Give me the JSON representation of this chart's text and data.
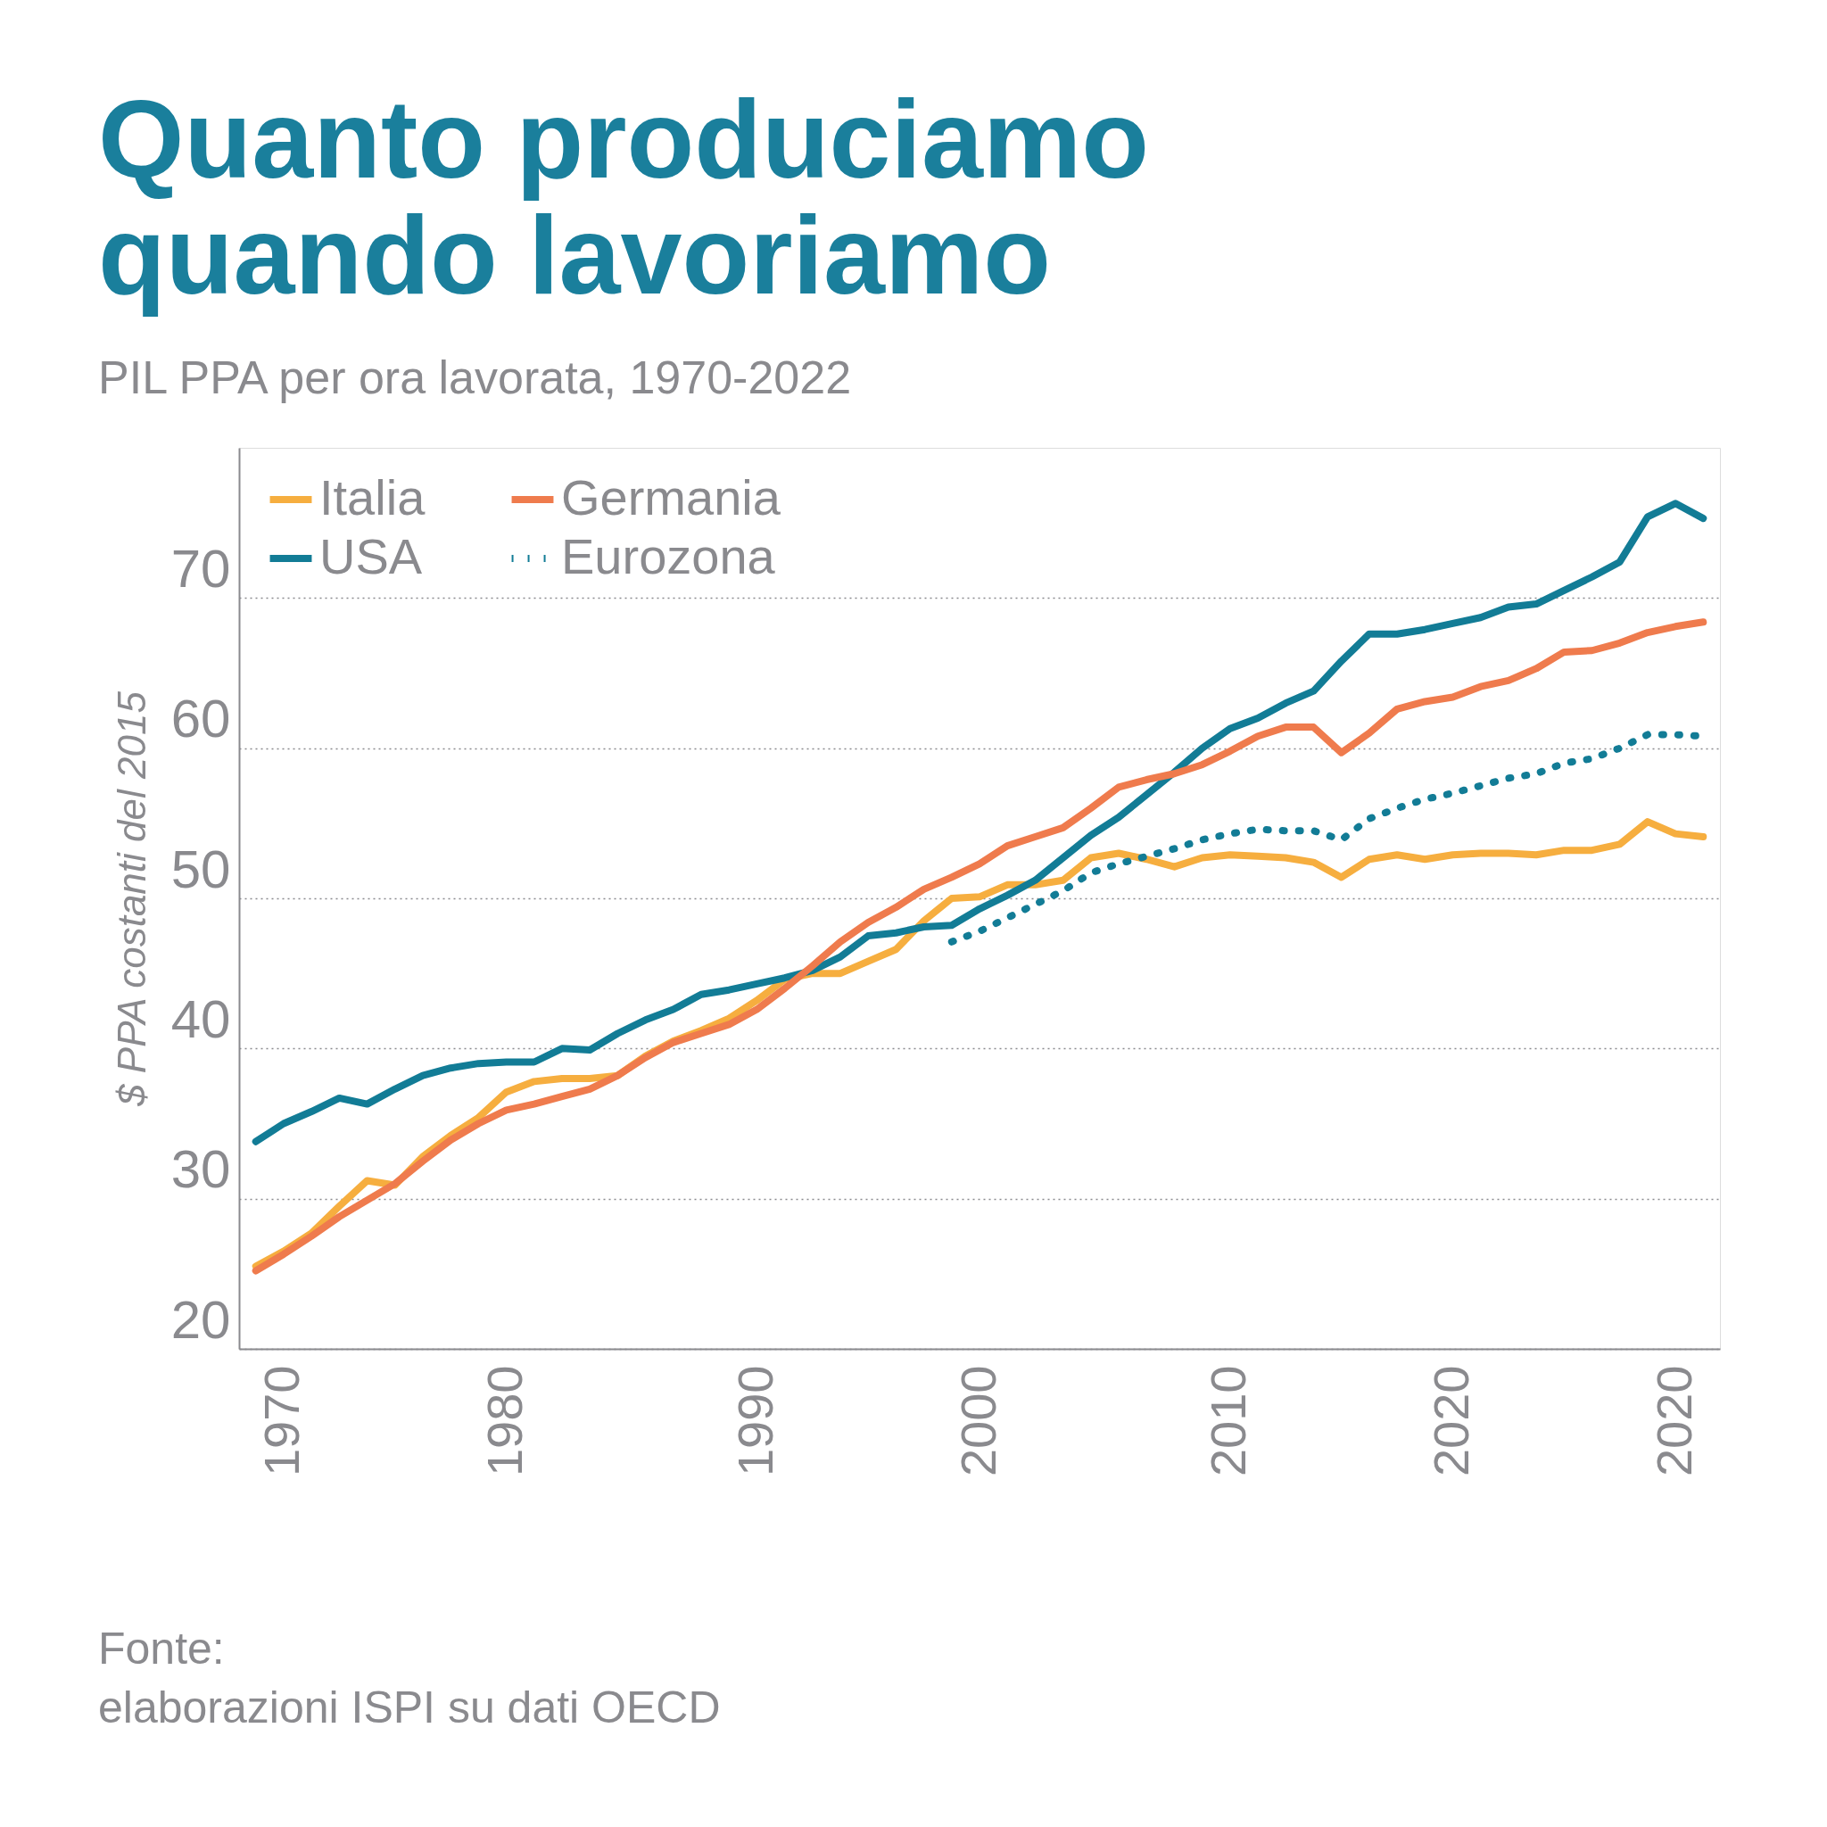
{
  "chart_data": {
    "type": "line",
    "title": "Quanto produciamo quando lavoriamo",
    "subtitle": "PIL PPA per ora lavorata, 1970-2022",
    "ylabel": "$ PPA costanti del 2015",
    "categories": [
      null,
      "1970",
      null,
      null,
      null,
      null,
      null,
      null,
      null,
      "1980",
      null,
      null,
      null,
      null,
      null,
      null,
      null,
      null,
      "1990",
      null,
      null,
      null,
      null,
      null,
      null,
      null,
      "2000",
      null,
      null,
      null,
      null,
      null,
      null,
      null,
      null,
      "2010",
      null,
      null,
      null,
      null,
      null,
      null,
      null,
      "2020",
      null,
      null,
      null,
      null,
      null,
      null,
      null,
      "2020",
      null
    ],
    "series": [
      {
        "name": "Italia",
        "color": "#f6ae3f",
        "line_style": "solid",
        "values": [
          25.5,
          26.5,
          27.7,
          29.5,
          31.2,
          30.9,
          32.8,
          34.2,
          35.4,
          37.1,
          37.8,
          38,
          38,
          38.2,
          39.5,
          40.5,
          41.2,
          42,
          43.2,
          44.6,
          45,
          45,
          45.8,
          46.6,
          48.5,
          50,
          50.1,
          50.9,
          50.9,
          51.2,
          52.7,
          53,
          52.6,
          52.1,
          52.7,
          52.9,
          52.8,
          52.7,
          52.4,
          51.4,
          52.6,
          52.9,
          52.6,
          52.9,
          53,
          53,
          52.9,
          53.2,
          53.2,
          53.6,
          55.1,
          54.3,
          54.1
        ]
      },
      {
        "name": "USA",
        "color": "#127c96",
        "line_style": "solid",
        "values": [
          33.8,
          35,
          35.8,
          36.7,
          36.3,
          37.3,
          38.2,
          38.7,
          39,
          39.1,
          39.1,
          40,
          39.9,
          41,
          41.9,
          42.6,
          43.6,
          43.9,
          44.3,
          44.7,
          45.2,
          46.1,
          47.5,
          47.7,
          48.1,
          48.2,
          49.3,
          50.2,
          51.2,
          52.7,
          54.2,
          55.4,
          56.9,
          58.4,
          60,
          61.3,
          62,
          63,
          63.8,
          65.8,
          67.6,
          67.6,
          67.9,
          68.3,
          68.7,
          69.4,
          69.6,
          70.5,
          71.4,
          72.4,
          75.4,
          76.3,
          75.3
        ]
      },
      {
        "name": "Germania",
        "color": "#ef7b4d",
        "line_style": "solid",
        "values": [
          25.2,
          26.3,
          27.5,
          28.8,
          29.9,
          31,
          32.5,
          33.9,
          35,
          35.9,
          36.3,
          36.8,
          37.3,
          38.2,
          39.4,
          40.4,
          41,
          41.6,
          42.6,
          44,
          45.5,
          47.1,
          48.4,
          49.4,
          50.6,
          51.4,
          52.3,
          53.5,
          54.1,
          54.7,
          56,
          57.4,
          57.9,
          58.3,
          58.9,
          59.8,
          60.8,
          61.4,
          61.4,
          59.7,
          61,
          62.6,
          63.1,
          63.4,
          64.1,
          64.5,
          65.3,
          66.4,
          66.5,
          67,
          67.7,
          68.1,
          68.4
        ]
      },
      {
        "name": "Eurozona",
        "color": "#127c96",
        "line_style": "dotted",
        "values": [
          null,
          null,
          null,
          null,
          null,
          null,
          null,
          null,
          null,
          null,
          null,
          null,
          null,
          null,
          null,
          null,
          null,
          null,
          null,
          null,
          null,
          null,
          null,
          null,
          null,
          47.1,
          47.8,
          48.7,
          49.6,
          50.5,
          51.7,
          52.3,
          52.8,
          53.3,
          53.9,
          54.3,
          54.6,
          54.5,
          54.5,
          53.9,
          55.3,
          56,
          56.6,
          57,
          57.5,
          58,
          58.3,
          59,
          59.3,
          60,
          60.9,
          60.9,
          60.8
        ]
      }
    ],
    "ylim": [
      20,
      80
    ],
    "yticks": [
      20,
      30,
      40,
      50,
      60,
      70
    ],
    "grid": "y",
    "legend": "top left",
    "annotations": [
      "Fonte:",
      "elaborazioni ISPI su dati OECD"
    ]
  }
}
